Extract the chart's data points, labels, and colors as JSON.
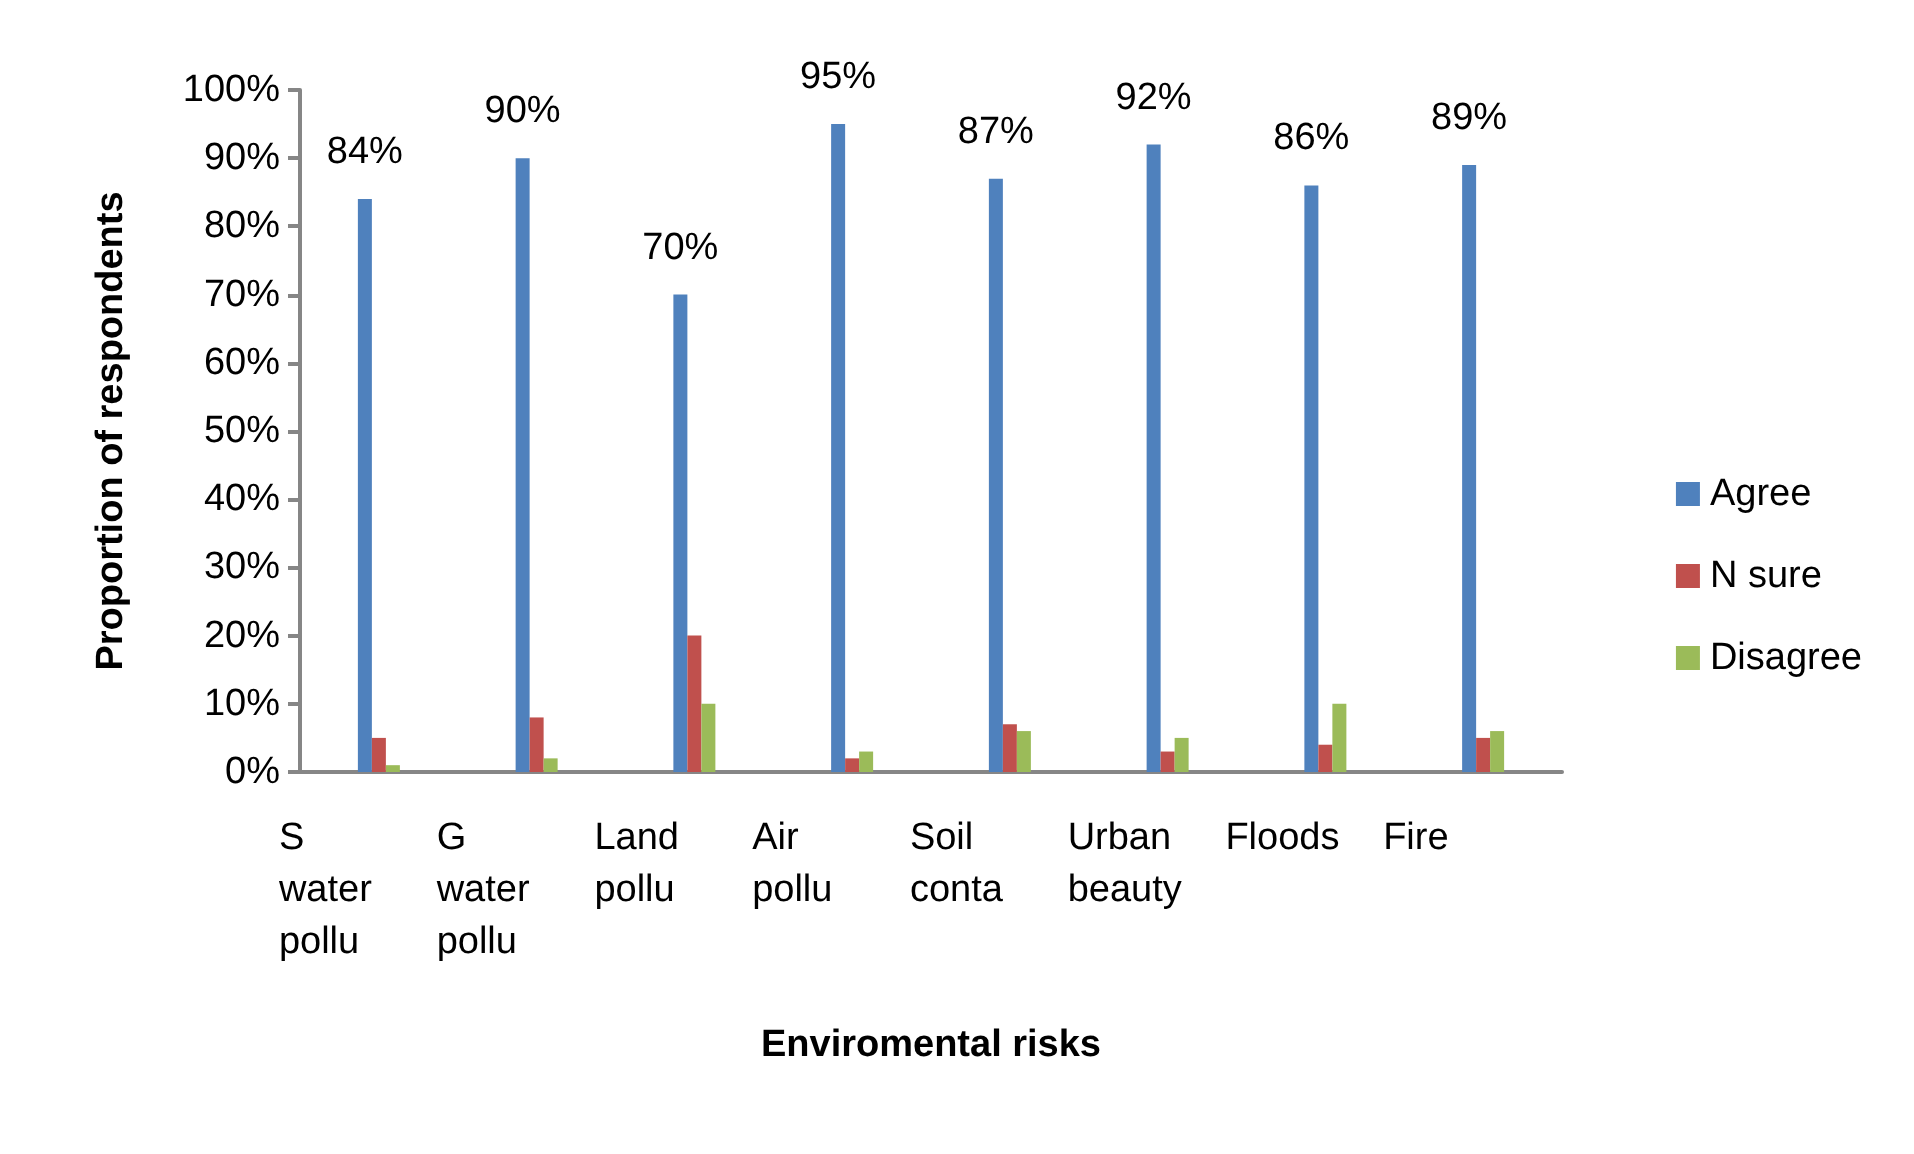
{
  "chart_data": {
    "type": "bar",
    "xlabel": "Enviromental risks",
    "ylabel": "Proportion of respondents",
    "categories": [
      "S water pollu",
      "G water pollu",
      "Land pollu",
      "Air pollu",
      "Soil conta",
      "Urban beauty",
      "Floods",
      "Fire"
    ],
    "series": [
      {
        "name": "Agree",
        "color": "#4f81bd",
        "values": [
          84,
          90,
          70,
          95,
          87,
          92,
          86,
          89
        ],
        "value_labels": [
          "84%",
          "90%",
          "70%",
          "95%",
          "87%",
          "92%",
          "86%",
          "89%"
        ]
      },
      {
        "name": "N sure",
        "color": "#c0504d",
        "values": [
          5,
          8,
          20,
          2,
          7,
          3,
          4,
          5
        ]
      },
      {
        "name": "Disagree",
        "color": "#9bbb59",
        "values": [
          1,
          2,
          10,
          3,
          6,
          5,
          10,
          6
        ]
      }
    ],
    "ylim": [
      0,
      100
    ],
    "yticks": [
      {
        "value": 0,
        "label": "0%"
      },
      {
        "value": 10,
        "label": "10%"
      },
      {
        "value": 20,
        "label": "20%"
      },
      {
        "value": 30,
        "label": "30%"
      },
      {
        "value": 40,
        "label": "40%"
      },
      {
        "value": 50,
        "label": "50%"
      },
      {
        "value": 60,
        "label": "60%"
      },
      {
        "value": 70,
        "label": "70%"
      },
      {
        "value": 80,
        "label": "80%"
      },
      {
        "value": 90,
        "label": "90%"
      },
      {
        "value": 100,
        "label": "100%"
      }
    ],
    "grid": false,
    "legend": "right"
  }
}
